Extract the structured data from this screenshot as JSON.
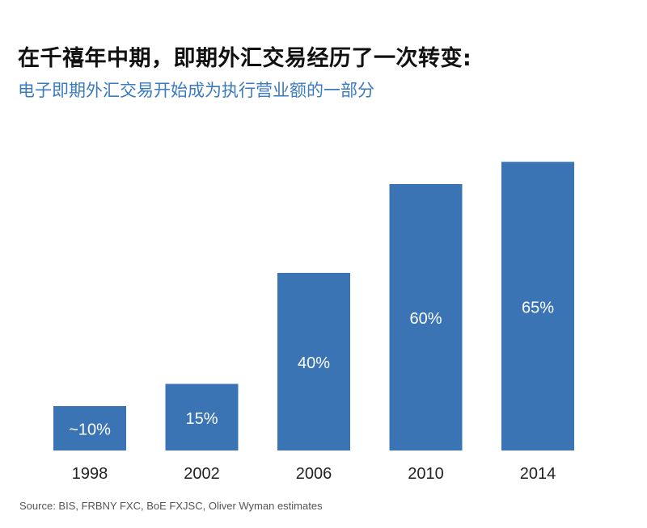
{
  "header": {
    "title": "在千禧年中期，即期外汇交易经历了一次转变:",
    "subtitle": "电子即期外汇交易开始成为执行营业额的一部分"
  },
  "colors": {
    "bar": "#3a74b4",
    "subtitle": "#3a7abf",
    "axis": "#222222"
  },
  "chart_data": {
    "type": "bar",
    "categories": [
      "1998",
      "2002",
      "2006",
      "2010",
      "2014"
    ],
    "values": [
      10,
      15,
      40,
      60,
      65
    ],
    "data_labels": [
      "~10%",
      "15%",
      "40%",
      "60%",
      "65%"
    ],
    "title": "",
    "xlabel": "",
    "ylabel": "",
    "ylim": [
      0,
      100
    ],
    "grid": false,
    "legend": "none"
  },
  "footer": {
    "source": "Source: BIS, FRBNY FXC, BoE FXJSC, Oliver Wyman estimates"
  }
}
